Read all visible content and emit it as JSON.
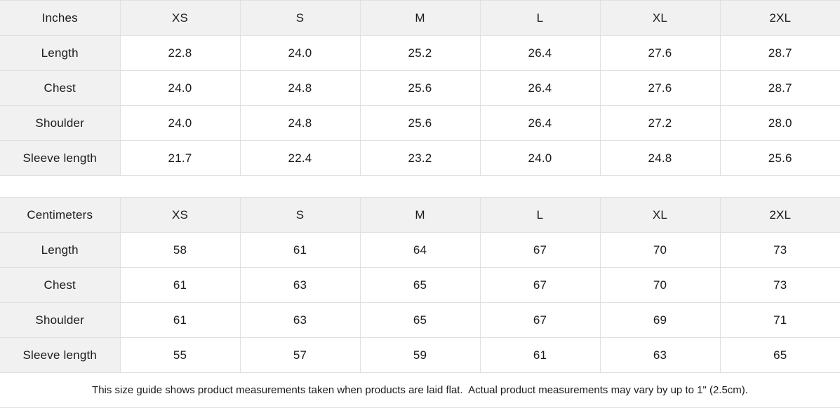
{
  "theme": {
    "header_bg": "#f1f1f1",
    "border_color": "#e0e0e0",
    "cell_bg": "#ffffff",
    "text_color": "#1b1b1b"
  },
  "tables": [
    {
      "unit_label": "Inches",
      "columns": [
        "XS",
        "S",
        "M",
        "L",
        "XL",
        "2XL"
      ],
      "rows": [
        {
          "label": "Length",
          "values": [
            "22.8",
            "24.0",
            "25.2",
            "26.4",
            "27.6",
            "28.7"
          ]
        },
        {
          "label": "Chest",
          "values": [
            "24.0",
            "24.8",
            "25.6",
            "26.4",
            "27.6",
            "28.7"
          ]
        },
        {
          "label": "Shoulder",
          "values": [
            "24.0",
            "24.8",
            "25.6",
            "26.4",
            "27.2",
            "28.0"
          ]
        },
        {
          "label": "Sleeve length",
          "values": [
            "21.7",
            "22.4",
            "23.2",
            "24.0",
            "24.8",
            "25.6"
          ]
        }
      ]
    },
    {
      "unit_label": "Centimeters",
      "columns": [
        "XS",
        "S",
        "M",
        "L",
        "XL",
        "2XL"
      ],
      "rows": [
        {
          "label": "Length",
          "values": [
            "58",
            "61",
            "64",
            "67",
            "70",
            "73"
          ]
        },
        {
          "label": "Chest",
          "values": [
            "61",
            "63",
            "65",
            "67",
            "70",
            "73"
          ]
        },
        {
          "label": "Shoulder",
          "values": [
            "61",
            "63",
            "65",
            "67",
            "69",
            "71"
          ]
        },
        {
          "label": "Sleeve length",
          "values": [
            "55",
            "57",
            "59",
            "61",
            "63",
            "65"
          ]
        }
      ]
    }
  ],
  "footer": {
    "note": "This size guide shows product measurements taken when products are laid flat.  Actual product measurements may vary by up to 1\" (2.5cm)."
  }
}
